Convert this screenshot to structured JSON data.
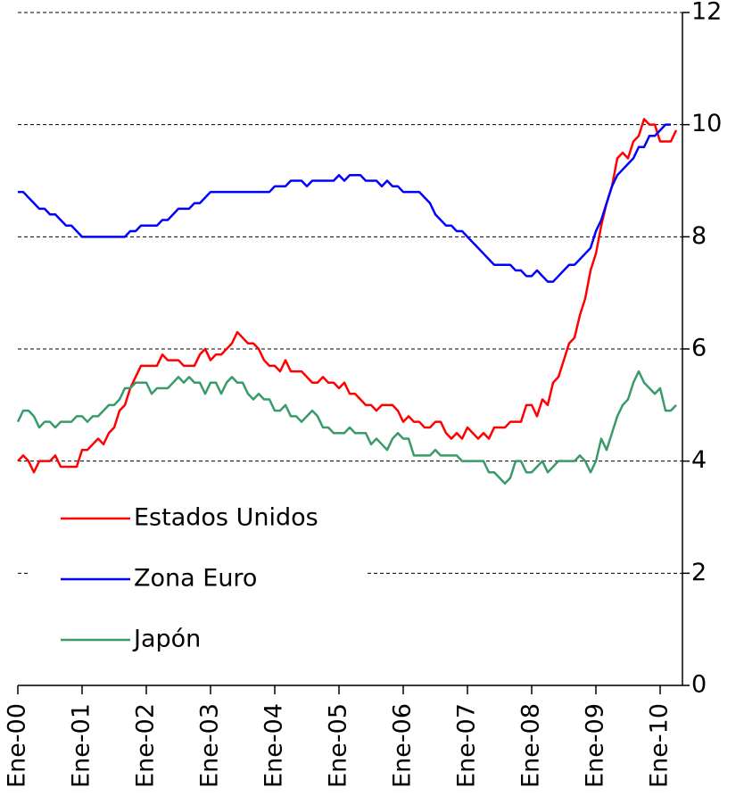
{
  "chart_data": {
    "type": "line",
    "categories": [
      "Ene-00",
      null,
      null,
      null,
      null,
      null,
      null,
      null,
      null,
      null,
      null,
      null,
      "Ene-01",
      null,
      null,
      null,
      null,
      null,
      null,
      null,
      null,
      null,
      null,
      null,
      "Ene-02",
      null,
      null,
      null,
      null,
      null,
      null,
      null,
      null,
      null,
      null,
      null,
      "Ene-03",
      null,
      null,
      null,
      null,
      null,
      null,
      null,
      null,
      null,
      null,
      null,
      "Ene-04",
      null,
      null,
      null,
      null,
      null,
      null,
      null,
      null,
      null,
      null,
      null,
      "Ene-05",
      null,
      null,
      null,
      null,
      null,
      null,
      null,
      null,
      null,
      null,
      null,
      "Ene-06",
      null,
      null,
      null,
      null,
      null,
      null,
      null,
      null,
      null,
      null,
      null,
      "Ene-07",
      null,
      null,
      null,
      null,
      null,
      null,
      null,
      null,
      null,
      null,
      null,
      "Ene-08",
      null,
      null,
      null,
      null,
      null,
      null,
      null,
      null,
      null,
      null,
      null,
      "Ene-09",
      null,
      null,
      null,
      null,
      null,
      null,
      null,
      null,
      null,
      null,
      null,
      "Ene-10",
      null,
      null,
      null
    ],
    "series": [
      {
        "name": "Estados Unidos",
        "color": "#ff0000",
        "values": [
          4.0,
          4.1,
          4.0,
          3.8,
          4.0,
          4.0,
          4.0,
          4.1,
          3.9,
          3.9,
          3.9,
          3.9,
          4.2,
          4.2,
          4.3,
          4.4,
          4.3,
          4.5,
          4.6,
          4.9,
          5.0,
          5.3,
          5.5,
          5.7,
          5.7,
          5.7,
          5.7,
          5.9,
          5.8,
          5.8,
          5.8,
          5.7,
          5.7,
          5.7,
          5.9,
          6.0,
          5.8,
          5.9,
          5.9,
          6.0,
          6.1,
          6.3,
          6.2,
          6.1,
          6.1,
          6.0,
          5.8,
          5.7,
          5.7,
          5.6,
          5.8,
          5.6,
          5.6,
          5.6,
          5.5,
          5.4,
          5.4,
          5.5,
          5.4,
          5.4,
          5.3,
          5.4,
          5.2,
          5.2,
          5.1,
          5.0,
          5.0,
          4.9,
          5.0,
          5.0,
          5.0,
          4.9,
          4.7,
          4.8,
          4.7,
          4.7,
          4.6,
          4.6,
          4.7,
          4.7,
          4.5,
          4.4,
          4.5,
          4.4,
          4.6,
          4.5,
          4.4,
          4.5,
          4.4,
          4.6,
          4.6,
          4.6,
          4.7,
          4.7,
          4.7,
          5.0,
          5.0,
          4.8,
          5.1,
          5.0,
          5.4,
          5.5,
          5.8,
          6.1,
          6.2,
          6.6,
          6.9,
          7.4,
          7.7,
          8.2,
          8.6,
          8.9,
          9.4,
          9.5,
          9.4,
          9.7,
          9.8,
          10.1,
          10.0,
          10.0,
          9.7,
          9.7,
          9.7,
          9.9
        ]
      },
      {
        "name": "Zona Euro",
        "color": "#0000ff",
        "values": [
          8.8,
          8.8,
          8.7,
          8.6,
          8.5,
          8.5,
          8.4,
          8.4,
          8.3,
          8.2,
          8.2,
          8.1,
          8.0,
          8.0,
          8.0,
          8.0,
          8.0,
          8.0,
          8.0,
          8.0,
          8.0,
          8.1,
          8.1,
          8.2,
          8.2,
          8.2,
          8.2,
          8.3,
          8.3,
          8.4,
          8.5,
          8.5,
          8.5,
          8.6,
          8.6,
          8.7,
          8.8,
          8.8,
          8.8,
          8.8,
          8.8,
          8.8,
          8.8,
          8.8,
          8.8,
          8.8,
          8.8,
          8.8,
          8.9,
          8.9,
          8.9,
          9.0,
          9.0,
          9.0,
          8.9,
          9.0,
          9.0,
          9.0,
          9.0,
          9.0,
          9.1,
          9.0,
          9.1,
          9.1,
          9.1,
          9.0,
          9.0,
          9.0,
          8.9,
          9.0,
          8.9,
          8.9,
          8.8,
          8.8,
          8.8,
          8.8,
          8.7,
          8.6,
          8.4,
          8.3,
          8.2,
          8.2,
          8.1,
          8.1,
          8.0,
          7.9,
          7.8,
          7.7,
          7.6,
          7.5,
          7.5,
          7.5,
          7.5,
          7.4,
          7.4,
          7.3,
          7.3,
          7.4,
          7.3,
          7.2,
          7.2,
          7.3,
          7.4,
          7.5,
          7.5,
          7.6,
          7.7,
          7.8,
          8.1,
          8.3,
          8.6,
          8.9,
          9.1,
          9.2,
          9.3,
          9.4,
          9.6,
          9.6,
          9.8,
          9.8,
          9.9,
          10.0,
          10.0,
          null
        ]
      },
      {
        "name": "Japón",
        "color": "#3a9a6a",
        "values": [
          4.7,
          4.9,
          4.9,
          4.8,
          4.6,
          4.7,
          4.7,
          4.6,
          4.7,
          4.7,
          4.7,
          4.8,
          4.8,
          4.7,
          4.8,
          4.8,
          4.9,
          5.0,
          5.0,
          5.1,
          5.3,
          5.3,
          5.4,
          5.4,
          5.4,
          5.2,
          5.3,
          5.3,
          5.3,
          5.4,
          5.5,
          5.4,
          5.5,
          5.4,
          5.4,
          5.2,
          5.4,
          5.4,
          5.2,
          5.4,
          5.5,
          5.4,
          5.4,
          5.2,
          5.1,
          5.2,
          5.1,
          5.1,
          4.9,
          4.9,
          5.0,
          4.8,
          4.8,
          4.7,
          4.8,
          4.9,
          4.8,
          4.6,
          4.6,
          4.5,
          4.5,
          4.5,
          4.6,
          4.5,
          4.5,
          4.5,
          4.3,
          4.4,
          4.3,
          4.2,
          4.4,
          4.5,
          4.4,
          4.4,
          4.1,
          4.1,
          4.1,
          4.1,
          4.2,
          4.1,
          4.1,
          4.1,
          4.1,
          4.0,
          4.0,
          4.0,
          4.0,
          4.0,
          3.8,
          3.8,
          3.7,
          3.6,
          3.7,
          4.0,
          4.0,
          3.8,
          3.8,
          3.9,
          4.0,
          3.8,
          3.9,
          4.0,
          4.0,
          4.0,
          4.0,
          4.1,
          4.0,
          3.8,
          4.0,
          4.4,
          4.2,
          4.5,
          4.8,
          5.0,
          5.1,
          5.4,
          5.6,
          5.4,
          5.3,
          5.2,
          5.3,
          4.9,
          4.9,
          5.0
        ]
      }
    ],
    "ylim": [
      0,
      12
    ],
    "yticks": [
      0,
      2,
      4,
      6,
      8,
      10,
      12
    ],
    "grid": true,
    "legend": "lower left"
  }
}
